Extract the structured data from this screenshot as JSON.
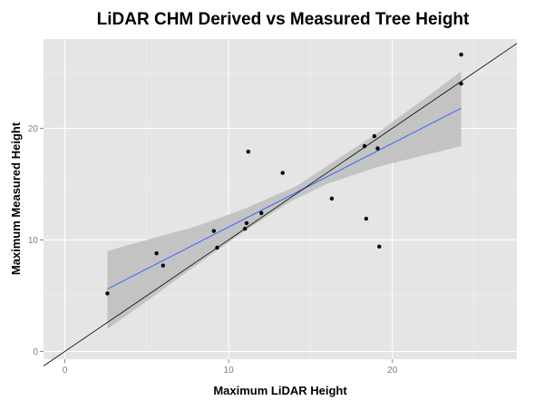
{
  "chart_data": {
    "type": "scatter",
    "title": "LiDAR CHM Derived vs Measured Tree Height",
    "xlabel": "Maximum LiDAR Height",
    "ylabel": "Maximum Measured Height",
    "xlim": [
      -1.3,
      27.6
    ],
    "ylim": [
      -0.7,
      28.0
    ],
    "x_ticks": [
      0,
      10,
      20
    ],
    "y_ticks": [
      0,
      10,
      20
    ],
    "minor_x_ticks": [
      5,
      15,
      25
    ],
    "minor_y_ticks": [
      5,
      15,
      25
    ],
    "grid": true,
    "panel_background": "#e5e5e5",
    "point_color": "#000000",
    "points": [
      {
        "x": 2.6,
        "y": 5.2
      },
      {
        "x": 5.6,
        "y": 8.8
      },
      {
        "x": 6.0,
        "y": 7.7
      },
      {
        "x": 9.1,
        "y": 10.8
      },
      {
        "x": 9.3,
        "y": 9.3
      },
      {
        "x": 11.0,
        "y": 11.0
      },
      {
        "x": 11.1,
        "y": 11.5
      },
      {
        "x": 11.2,
        "y": 17.9
      },
      {
        "x": 12.0,
        "y": 12.4
      },
      {
        "x": 13.3,
        "y": 16.0
      },
      {
        "x": 16.3,
        "y": 13.7
      },
      {
        "x": 18.3,
        "y": 18.4
      },
      {
        "x": 18.4,
        "y": 11.9
      },
      {
        "x": 18.9,
        "y": 19.3
      },
      {
        "x": 19.1,
        "y": 18.2
      },
      {
        "x": 19.2,
        "y": 9.4
      },
      {
        "x": 24.2,
        "y": 26.6
      },
      {
        "x": 24.2,
        "y": 24.0
      }
    ],
    "regression_line": {
      "color": "#3366ff",
      "x": [
        2.6,
        24.2
      ],
      "y": [
        5.6,
        21.8
      ]
    },
    "confidence_band": {
      "color": "#bdbdbd",
      "x": [
        2.6,
        5.0,
        8.0,
        11.0,
        13.0,
        14.0,
        16.0,
        19.0,
        22.0,
        24.2
      ],
      "lower": [
        2.0,
        4.5,
        7.7,
        10.8,
        12.7,
        13.6,
        15.0,
        16.5,
        17.6,
        18.4
      ],
      "upper": [
        9.0,
        10.0,
        11.2,
        12.8,
        14.1,
        14.7,
        16.6,
        19.5,
        22.7,
        25.1
      ]
    },
    "identity_line": {
      "color": "#000000",
      "x": [
        -1.3,
        27.6
      ],
      "y": [
        -1.3,
        27.6
      ]
    }
  }
}
